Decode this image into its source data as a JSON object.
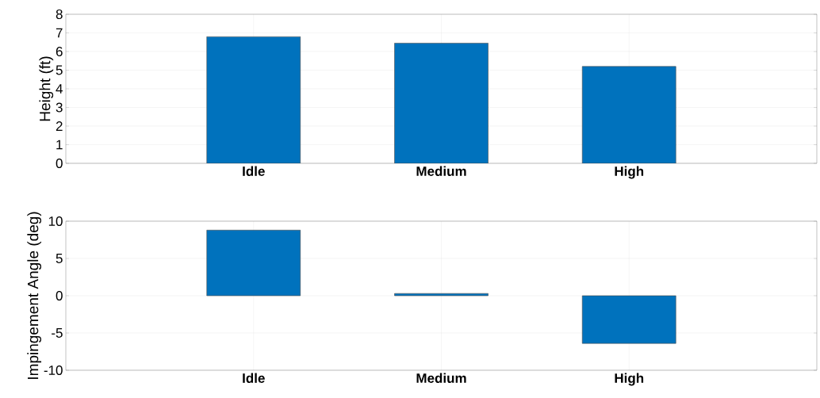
{
  "chart_data": [
    {
      "type": "bar",
      "ylabel": "Height (ft)",
      "categories": [
        "Idle",
        "Medium",
        "High"
      ],
      "values": [
        6.8,
        6.45,
        5.2
      ],
      "color": "#0072bd",
      "ylim": [
        0,
        8
      ],
      "yticks": [
        0,
        1,
        2,
        3,
        4,
        5,
        6,
        7,
        8
      ],
      "grid": true
    },
    {
      "type": "bar",
      "ylabel": "Impingement Angle (deg)",
      "categories": [
        "Idle",
        "Medium",
        "High"
      ],
      "values": [
        8.8,
        0.3,
        -6.4
      ],
      "color": "#0072bd",
      "ylim": [
        -10,
        10
      ],
      "yticks": [
        -10,
        -5,
        0,
        5,
        10
      ],
      "grid": true
    }
  ]
}
